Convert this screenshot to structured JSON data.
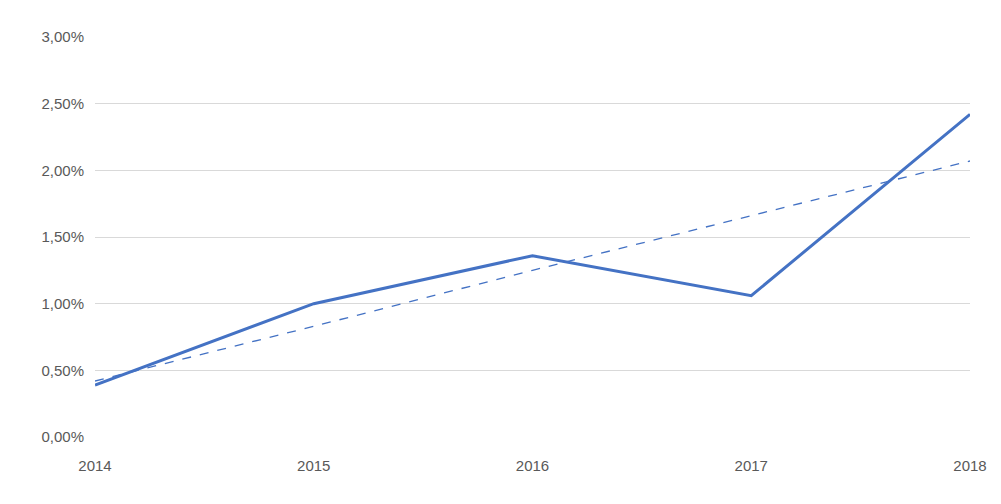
{
  "chart_data": {
    "type": "line",
    "categories": [
      "2014",
      "2015",
      "2016",
      "2017",
      "2018"
    ],
    "series": [
      {
        "color": "#4472c4",
        "line_style": "solid",
        "values": [
          0.39,
          1.0,
          1.36,
          1.06,
          2.42
        ]
      },
      {
        "color": "#4472c4",
        "line_style": "dashed",
        "values": [
          0.42,
          0.83,
          1.25,
          1.66,
          2.07
        ]
      }
    ],
    "ylim": [
      0,
      3
    ],
    "yticks": [
      {
        "value": 0,
        "label": "0,00%"
      },
      {
        "value": 0.5,
        "label": "0,50%"
      },
      {
        "value": 1,
        "label": "1,00%"
      },
      {
        "value": 1.5,
        "label": "1,50%"
      },
      {
        "value": 2,
        "label": "2,00%"
      },
      {
        "value": 2.5,
        "label": "2,50%"
      },
      {
        "value": 3,
        "label": "3,00%"
      }
    ],
    "grid": true
  }
}
